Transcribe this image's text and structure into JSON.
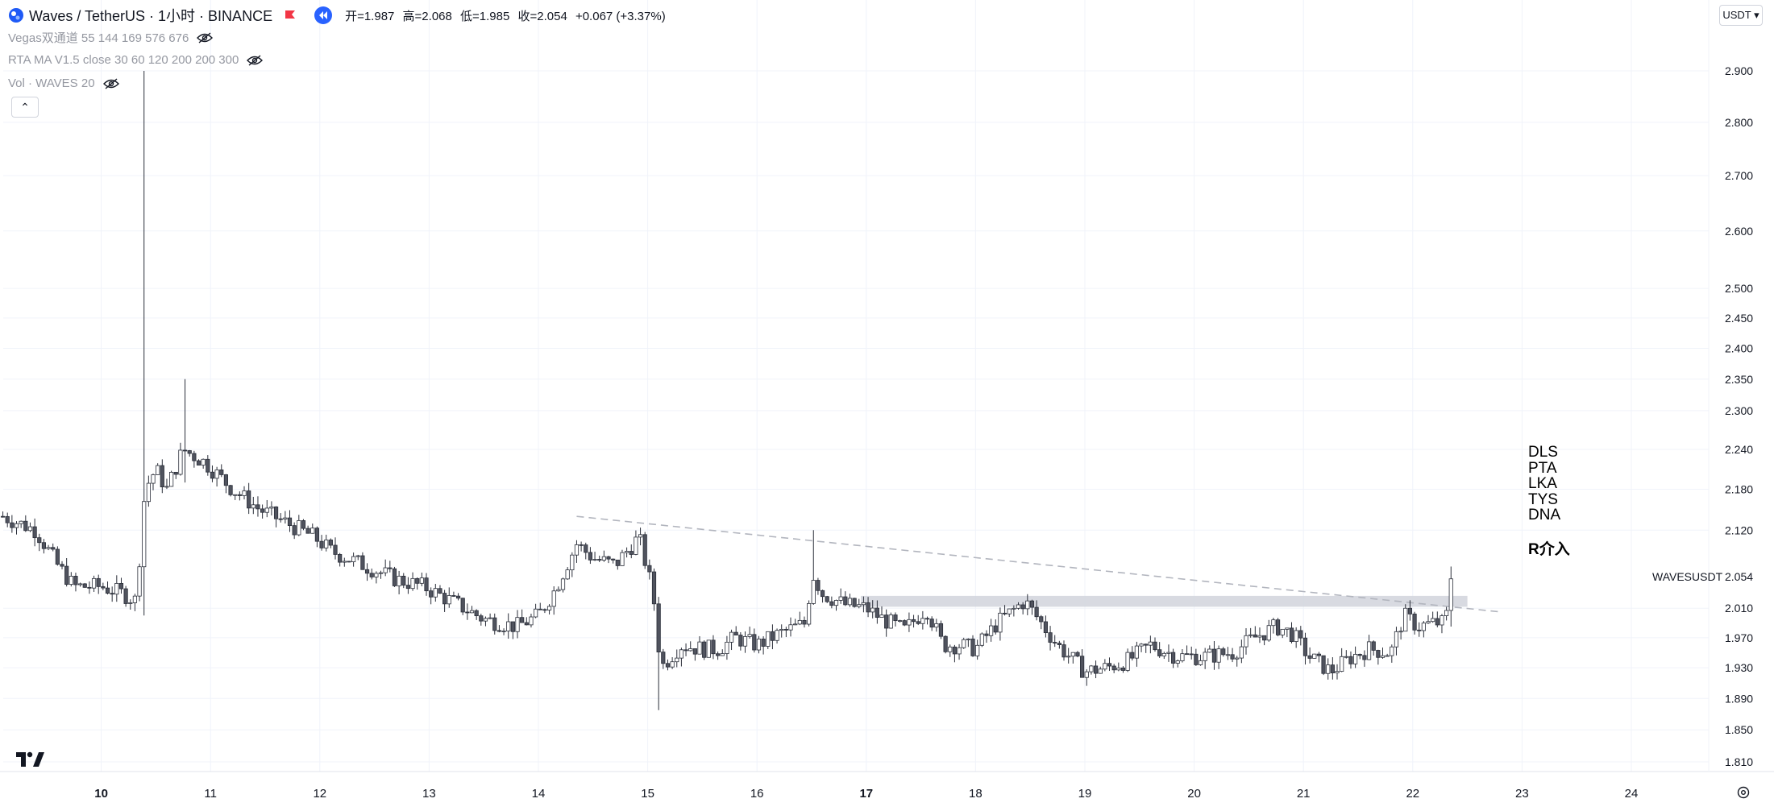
{
  "header": {
    "symbol": "Waves / TetherUS · 1小时 · BINANCE",
    "ohlc": {
      "open_label": "开=1.987",
      "high_label": "高=2.068",
      "low_label": "低=1.985",
      "close_label": "收=2.054",
      "change_label": "+0.067 (+3.37%)"
    },
    "currency": "USDT ▾"
  },
  "indicators": [
    {
      "label": "Vegas双通道 55 144 169 576 676"
    },
    {
      "label": "RTA MA V1.5 close 30 60 120 200 200 300"
    },
    {
      "label": "Vol · WAVES 20"
    }
  ],
  "annotations": {
    "list": "DLS\nPTA\nLKA\nTYS\nDNA",
    "r_label": "R介入",
    "symbol_tag": "WAVESUSDT"
  },
  "colors": {
    "up_fill": "#ffffff",
    "candle_stroke": "#2a2e39",
    "down_fill": "#50535e",
    "grid": "#f0f3fa",
    "trendline": "#b2b5be",
    "zone": "#d1d4dc",
    "flag": "#f23645",
    "replay": "#2962ff"
  },
  "chart_data": {
    "type": "candlestick",
    "title": "Waves / TetherUS · 1小时 · BINANCE",
    "interval": "1h",
    "x_ticks": [
      "10",
      "11",
      "12",
      "13",
      "14",
      "15",
      "16",
      "17",
      "18",
      "19",
      "20",
      "21",
      "22",
      "23",
      "24"
    ],
    "x_range_days": [
      9.08,
      24.99
    ],
    "y_ticks": [
      1.81,
      1.85,
      1.89,
      1.93,
      1.97,
      2.01,
      2.054,
      2.12,
      2.18,
      2.24,
      2.3,
      2.35,
      2.4,
      2.45,
      2.5,
      2.6,
      2.7,
      2.8,
      2.9
    ],
    "y_scale": "log",
    "y_range": [
      1.795,
      2.925
    ],
    "last_price": 2.054,
    "anchors": [
      [
        9.1,
        2.14
      ],
      [
        9.4,
        2.12
      ],
      [
        9.6,
        2.07
      ],
      [
        9.75,
        2.04
      ],
      [
        10.0,
        2.04
      ],
      [
        10.2,
        2.03
      ],
      [
        10.32,
        2.02
      ],
      [
        10.4,
        2.18
      ],
      [
        10.5,
        2.21
      ],
      [
        10.6,
        2.18
      ],
      [
        10.75,
        2.24
      ],
      [
        10.95,
        2.22
      ],
      [
        11.2,
        2.18
      ],
      [
        11.45,
        2.15
      ],
      [
        11.7,
        2.13
      ],
      [
        11.95,
        2.11
      ],
      [
        12.1,
        2.09
      ],
      [
        12.4,
        2.07
      ],
      [
        12.7,
        2.05
      ],
      [
        12.95,
        2.04
      ],
      [
        13.2,
        2.02
      ],
      [
        13.5,
        1.995
      ],
      [
        13.8,
        1.985
      ],
      [
        14.0,
        2.0
      ],
      [
        14.15,
        2.035
      ],
      [
        14.35,
        2.1
      ],
      [
        14.5,
        2.08
      ],
      [
        14.7,
        2.07
      ],
      [
        14.92,
        2.11
      ],
      [
        15.05,
        2.03
      ],
      [
        15.12,
        1.93
      ],
      [
        15.3,
        1.96
      ],
      [
        15.5,
        1.955
      ],
      [
        15.65,
        1.955
      ],
      [
        15.8,
        1.97
      ],
      [
        16.0,
        1.96
      ],
      [
        16.2,
        1.975
      ],
      [
        16.45,
        1.99
      ],
      [
        16.5,
        2.06
      ],
      [
        16.6,
        2.03
      ],
      [
        16.8,
        2.015
      ],
      [
        17.0,
        2.01
      ],
      [
        17.15,
        1.995
      ],
      [
        17.35,
        1.98
      ],
      [
        17.55,
        2.01
      ],
      [
        17.7,
        1.96
      ],
      [
        17.85,
        1.96
      ],
      [
        18.0,
        1.955
      ],
      [
        18.2,
        1.99
      ],
      [
        18.45,
        2.02
      ],
      [
        18.6,
        1.99
      ],
      [
        18.75,
        1.96
      ],
      [
        19.0,
        1.925
      ],
      [
        19.2,
        1.93
      ],
      [
        19.4,
        1.94
      ],
      [
        19.6,
        1.96
      ],
      [
        19.85,
        1.945
      ],
      [
        20.1,
        1.945
      ],
      [
        20.35,
        1.95
      ],
      [
        20.55,
        1.97
      ],
      [
        20.75,
        1.985
      ],
      [
        20.9,
        1.975
      ],
      [
        21.05,
        1.945
      ],
      [
        21.25,
        1.925
      ],
      [
        21.45,
        1.945
      ],
      [
        21.6,
        1.955
      ],
      [
        21.8,
        1.95
      ],
      [
        21.92,
        2.0
      ],
      [
        22.05,
        1.985
      ],
      [
        22.2,
        1.99
      ],
      [
        22.3,
        1.99
      ],
      [
        22.35,
        2.054
      ]
    ],
    "spikes": [
      {
        "day": 10.38,
        "high": 2.9,
        "low": 2.0
      },
      {
        "day": 10.78,
        "high": 2.35,
        "low": 2.19
      },
      {
        "day": 15.11,
        "high": 1.96,
        "low": 1.875
      },
      {
        "day": 16.51,
        "high": 2.12,
        "low": 2.03
      },
      {
        "day": 22.36,
        "high": 2.068,
        "low": 1.985
      }
    ],
    "trendline": {
      "start": [
        14.35,
        2.14
      ],
      "end": [
        22.8,
        2.005
      ]
    },
    "zone": {
      "start_day": 16.95,
      "end_day": 22.5,
      "low": 2.012,
      "high": 2.027
    }
  }
}
